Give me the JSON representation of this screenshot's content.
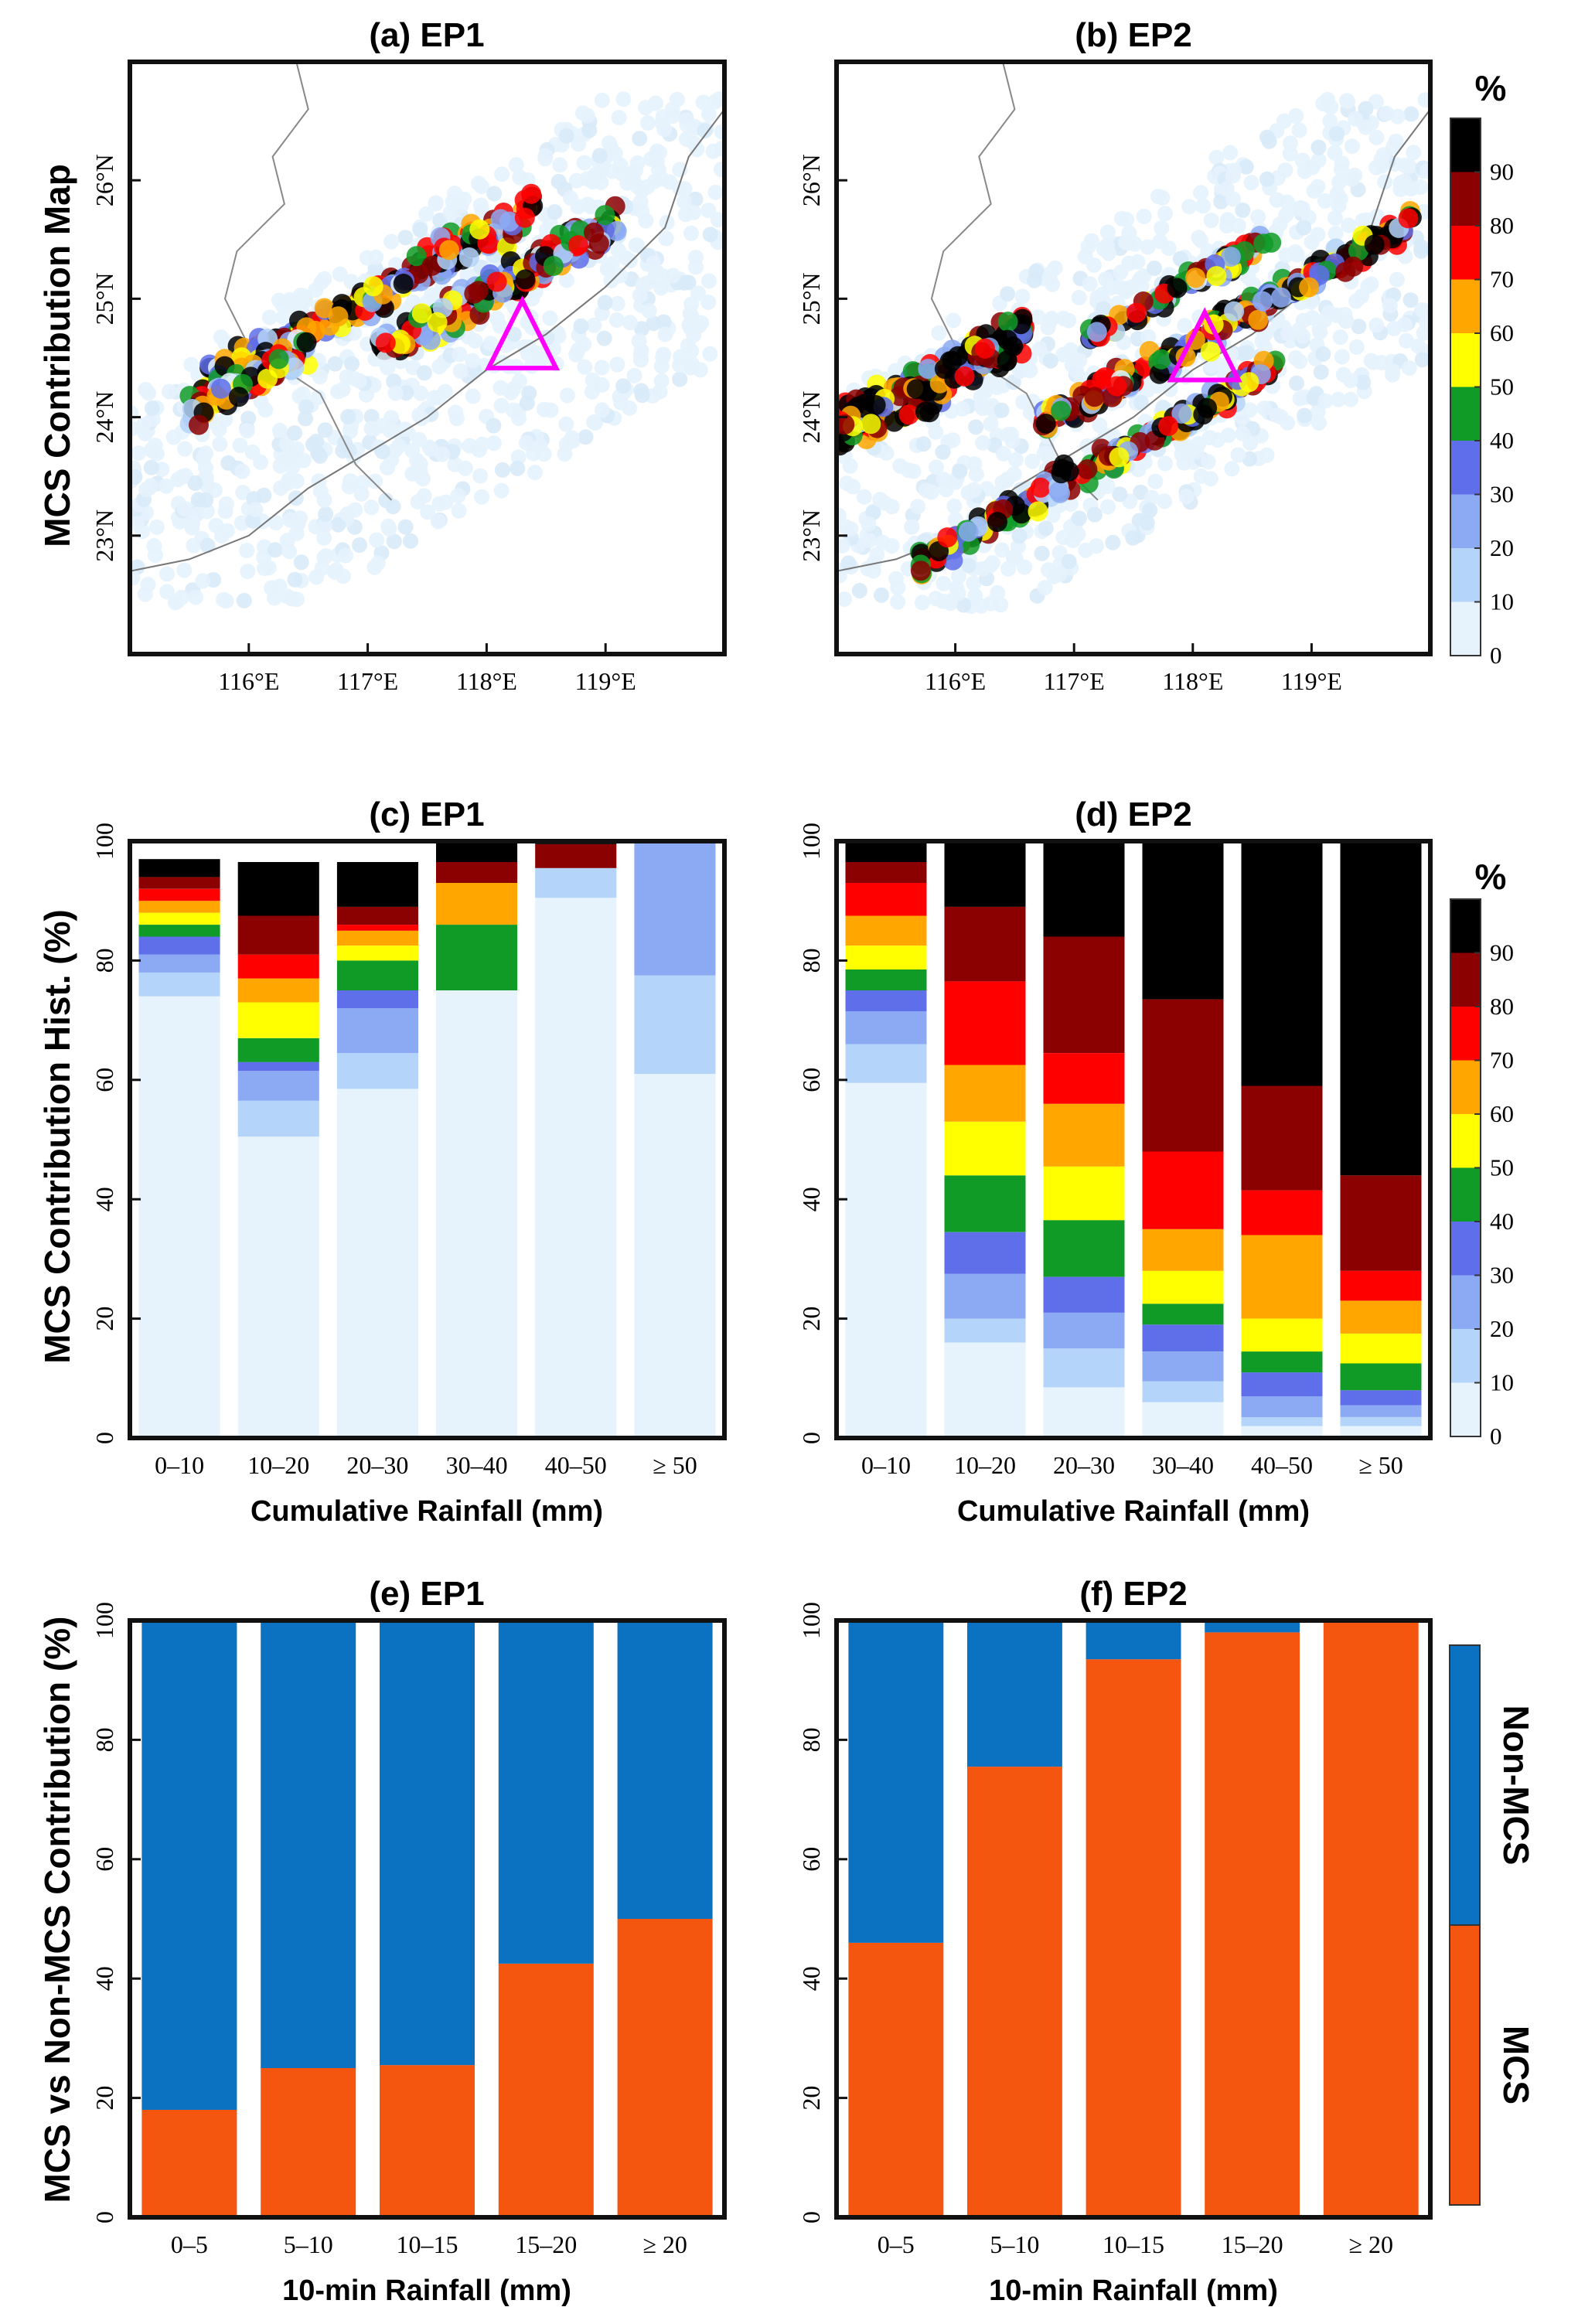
{
  "figure": {
    "row_labels": {
      "map": "MCS Contribution Map",
      "hist": "MCS Contribution Hist. (%)",
      "split": "MCS vs Non-MCS Contribution (%)"
    },
    "colorbar_unit": "%",
    "colorbar_ticks": [
      "0",
      "10",
      "20",
      "30",
      "40",
      "50",
      "60",
      "70",
      "80",
      "90"
    ],
    "colorbar_colors": [
      "#e6f3fd",
      "#b4d4f9",
      "#8caaf3",
      "#5f6fe9",
      "#109b27",
      "#ffff00",
      "#ffa600",
      "#ff0000",
      "#8b0000",
      "#000000"
    ],
    "legend": {
      "top_label": "Non-MCS",
      "bottom_label": "MCS",
      "top_color": "#0b72c2",
      "bottom_color": "#f5560f"
    }
  },
  "chart_data": [
    {
      "type": "scatter",
      "title": "(a) EP1",
      "xticks": [
        "116°E",
        "117°E",
        "118°E",
        "119°E"
      ],
      "yticks": [
        "23°N",
        "24°N",
        "25°N",
        "26°N"
      ],
      "xlim": [
        115,
        120
      ],
      "ylim": [
        22,
        27
      ],
      "triangle_center": [
        118.3,
        24.65
      ],
      "description_note": "Point clusters of MCS contribution (%) along SW–NE band"
    },
    {
      "type": "scatter",
      "title": "(b) EP2",
      "xticks": [
        "116°E",
        "117°E",
        "118°E",
        "119°E"
      ],
      "yticks": [
        "23°N",
        "24°N",
        "25°N",
        "26°N"
      ],
      "xlim": [
        115,
        120
      ],
      "ylim": [
        22,
        27
      ],
      "triangle_center": [
        118.1,
        24.55
      ]
    },
    {
      "type": "bar",
      "stacked": true,
      "title": "(c) EP1",
      "xlabel": "Cumulative Rainfall (mm)",
      "categories": [
        "0–10",
        "10–20",
        "20–30",
        "30–40",
        "40–50",
        "≥ 50"
      ],
      "ylim": [
        0,
        100
      ],
      "yticks": [
        "0",
        "20",
        "40",
        "60",
        "80",
        "100"
      ],
      "bins": [
        "0-10",
        "10-20",
        "20-30",
        "30-40",
        "40-50",
        "50-60",
        "60-70",
        "70-80",
        "80-90",
        "90-100"
      ],
      "values": [
        [
          74,
          4,
          3,
          3,
          2,
          2,
          2,
          2,
          2,
          3
        ],
        [
          50.5,
          6,
          5,
          1.5,
          4,
          6,
          4,
          4,
          6.5,
          9
        ],
        [
          58.5,
          6,
          7.5,
          3,
          5,
          2.5,
          2.5,
          1,
          3,
          7.5
        ],
        [
          75,
          0,
          0,
          0,
          11,
          0,
          7,
          0,
          3.5,
          3.5
        ],
        [
          90.5,
          5,
          0,
          0,
          0,
          0,
          0,
          0,
          4,
          0.5
        ],
        [
          61,
          16.5,
          22.5,
          0,
          0,
          0,
          0,
          0,
          0,
          0
        ]
      ]
    },
    {
      "type": "bar",
      "stacked": true,
      "title": "(d) EP2",
      "xlabel": "Cumulative Rainfall (mm)",
      "categories": [
        "0–10",
        "10–20",
        "20–30",
        "30–40",
        "40–50",
        "≥ 50"
      ],
      "ylim": [
        0,
        100
      ],
      "yticks": [
        "0",
        "20",
        "40",
        "60",
        "80",
        "100"
      ],
      "bins": [
        "0-10",
        "10-20",
        "20-30",
        "30-40",
        "40-50",
        "50-60",
        "60-70",
        "70-80",
        "80-90",
        "90-100"
      ],
      "values": [
        [
          59.5,
          6.5,
          5.5,
          3.5,
          3.5,
          4,
          5,
          5.5,
          3.5,
          3.5
        ],
        [
          16,
          4,
          7.5,
          7,
          9.5,
          9,
          9.5,
          14,
          12.5,
          11
        ],
        [
          8.5,
          6.5,
          6,
          6,
          9.5,
          9,
          10.5,
          8.5,
          19.5,
          16
        ],
        [
          6,
          3.5,
          5,
          4.5,
          3.5,
          5.5,
          7,
          13,
          25.5,
          26.5
        ],
        [
          2,
          1.5,
          3.5,
          4,
          3.5,
          5.5,
          14,
          7.5,
          17.5,
          41
        ],
        [
          2,
          1.5,
          2,
          2.5,
          4.5,
          5,
          5.5,
          5,
          16,
          56
        ]
      ]
    },
    {
      "type": "bar",
      "stacked": true,
      "title": "(e) EP1",
      "xlabel": "10-min Rainfall (mm)",
      "categories": [
        "0–5",
        "5–10",
        "10–15",
        "15–20",
        "≥ 20"
      ],
      "ylim": [
        0,
        100
      ],
      "yticks": [
        "0",
        "20",
        "40",
        "60",
        "80",
        "100"
      ],
      "series": [
        {
          "name": "MCS",
          "values": [
            18,
            25,
            25.5,
            42.5,
            50
          ]
        },
        {
          "name": "Non-MCS",
          "values": [
            82,
            75,
            74.5,
            57.5,
            50
          ]
        }
      ]
    },
    {
      "type": "bar",
      "stacked": true,
      "title": "(f) EP2",
      "xlabel": "10-min Rainfall (mm)",
      "categories": [
        "0–5",
        "5–10",
        "10–15",
        "15–20",
        "≥ 20"
      ],
      "ylim": [
        0,
        100
      ],
      "yticks": [
        "0",
        "20",
        "40",
        "60",
        "80",
        "100"
      ],
      "series": [
        {
          "name": "MCS",
          "values": [
            46,
            75.5,
            93.5,
            98,
            100
          ]
        },
        {
          "name": "Non-MCS",
          "values": [
            54,
            24.5,
            6.5,
            2,
            0
          ]
        }
      ]
    }
  ]
}
